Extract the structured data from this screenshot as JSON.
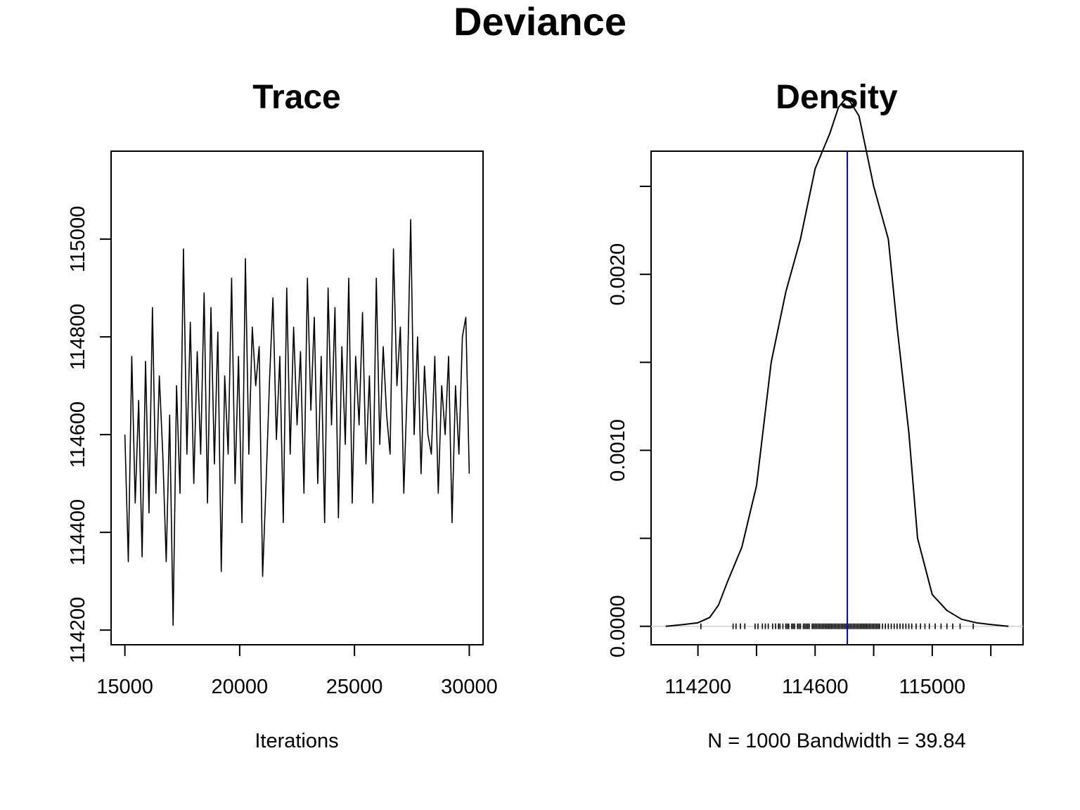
{
  "title": "Deviance",
  "chart_data": [
    {
      "type": "line",
      "title": "Trace",
      "xlabel": "Iterations",
      "ylabel": "",
      "xlim": [
        14400,
        30600
      ],
      "ylim": [
        114170,
        115180
      ],
      "x_ticks": [
        15000,
        20000,
        25000,
        30000
      ],
      "y_ticks": [
        114200,
        114400,
        114600,
        114800,
        115000
      ],
      "x_tick_labels": [
        "15000",
        "20000",
        "25000",
        "30000"
      ],
      "y_tick_labels": [
        "114200",
        "114400",
        "114600",
        "114800",
        "115000"
      ],
      "grid": false,
      "series": [
        {
          "line_color": "#000000",
          "x": [
            15000,
            15150,
            15300,
            15450,
            15600,
            15750,
            15900,
            16050,
            16200,
            16350,
            16500,
            16650,
            16800,
            16950,
            17100,
            17250,
            17400,
            17550,
            17700,
            17850,
            18000,
            18150,
            18300,
            18450,
            18600,
            18750,
            18900,
            19050,
            19200,
            19350,
            19500,
            19650,
            19800,
            19950,
            20100,
            20250,
            20400,
            20550,
            20700,
            20850,
            21000,
            21150,
            21300,
            21450,
            21600,
            21750,
            21900,
            22050,
            22200,
            22350,
            22500,
            22650,
            22800,
            22950,
            23100,
            23250,
            23400,
            23550,
            23700,
            23850,
            24000,
            24150,
            24300,
            24450,
            24600,
            24750,
            24900,
            25050,
            25200,
            25350,
            25500,
            25650,
            25800,
            25950,
            26100,
            26250,
            26400,
            26550,
            26700,
            26850,
            27000,
            27150,
            27300,
            27450,
            27600,
            27750,
            27900,
            28050,
            28200,
            28350,
            28500,
            28650,
            28800,
            28950,
            29100,
            29250,
            29400,
            29550,
            29700,
            29850,
            30000
          ],
          "values": [
            114600,
            114340,
            114760,
            114460,
            114670,
            114350,
            114750,
            114440,
            114860,
            114480,
            114720,
            114560,
            114340,
            114640,
            114210,
            114700,
            114480,
            114980,
            114560,
            114830,
            114500,
            114770,
            114560,
            114890,
            114460,
            114860,
            114540,
            114810,
            114320,
            114720,
            114560,
            114920,
            114500,
            114760,
            114420,
            114960,
            114560,
            114820,
            114700,
            114780,
            114310,
            114500,
            114710,
            114880,
            114590,
            114760,
            114420,
            114900,
            114560,
            114820,
            114620,
            114770,
            114480,
            114920,
            114650,
            114840,
            114500,
            114760,
            114420,
            114900,
            114620,
            114860,
            114430,
            114780,
            114580,
            114920,
            114460,
            114760,
            114620,
            114850,
            114540,
            114720,
            114460,
            114920,
            114580,
            114780,
            114640,
            114560,
            114980,
            114700,
            114820,
            114480,
            114700,
            115040,
            114600,
            114800,
            114520,
            114740,
            114600,
            114560,
            114760,
            114480,
            114700,
            114600,
            114760,
            114420,
            114700,
            114560,
            114800,
            114840,
            114520
          ]
        }
      ]
    },
    {
      "type": "line",
      "title": "Density",
      "xlabel": "N = 1000   Bandwidth = 39.84",
      "ylabel": "",
      "xlim": [
        114040,
        115310
      ],
      "ylim": [
        -0.000105,
        0.0027
      ],
      "x_ticks": [
        114200,
        114400,
        114600,
        114800,
        115000,
        115200
      ],
      "x_tick_labels": [
        "114200",
        "",
        "114600",
        "",
        "115000",
        ""
      ],
      "y_ticks": [
        0.0,
        0.0005,
        0.001,
        0.0015,
        0.002,
        0.0025
      ],
      "y_tick_labels": [
        "0.0000",
        "",
        "0.0010",
        "",
        "0.0020",
        ""
      ],
      "grid": false,
      "series": [
        {
          "line_color": "#000000",
          "x": [
            114090,
            114150,
            114200,
            114240,
            114270,
            114300,
            114350,
            114400,
            114450,
            114500,
            114550,
            114600,
            114650,
            114680,
            114705,
            114720,
            114750,
            114800,
            114850,
            114880,
            114920,
            114950,
            115000,
            115050,
            115100,
            115150,
            115200,
            115260
          ],
          "values": [
            0.0,
            1e-05,
            2e-05,
            5e-05,
            0.00012,
            0.00025,
            0.00045,
            0.0008,
            0.0015,
            0.0019,
            0.0022,
            0.0026,
            0.0028,
            0.00295,
            0.003,
            0.00298,
            0.0029,
            0.0025,
            0.0022,
            0.0017,
            0.0011,
            0.0005,
            0.00018,
            9e-05,
            4e-05,
            2e-05,
            1e-05,
            0.0
          ]
        }
      ],
      "vline": {
        "x": 114710,
        "color": "#0000cc"
      },
      "rug_color": "#000000",
      "rug": [
        114210,
        114320,
        114330,
        114345,
        114360,
        114395,
        114405,
        114420,
        114430,
        114440,
        114455,
        114465,
        114475,
        114480,
        114490,
        114500,
        114505,
        114510,
        114520,
        114525,
        114530,
        114540,
        114545,
        114550,
        114560,
        114565,
        114570,
        114575,
        114580,
        114590,
        114595,
        114600,
        114605,
        114610,
        114615,
        114620,
        114625,
        114630,
        114635,
        114640,
        114645,
        114650,
        114655,
        114660,
        114665,
        114670,
        114675,
        114680,
        114685,
        114690,
        114695,
        114700,
        114705,
        114710,
        114715,
        114720,
        114725,
        114730,
        114735,
        114740,
        114745,
        114750,
        114755,
        114760,
        114765,
        114770,
        114775,
        114780,
        114785,
        114790,
        114795,
        114800,
        114805,
        114810,
        114815,
        114820,
        114830,
        114840,
        114850,
        114860,
        114870,
        114880,
        114890,
        114900,
        114910,
        114920,
        114930,
        114945,
        114960,
        114975,
        114990,
        115010,
        115030,
        115050,
        115070,
        115095,
        115140
      ]
    }
  ]
}
